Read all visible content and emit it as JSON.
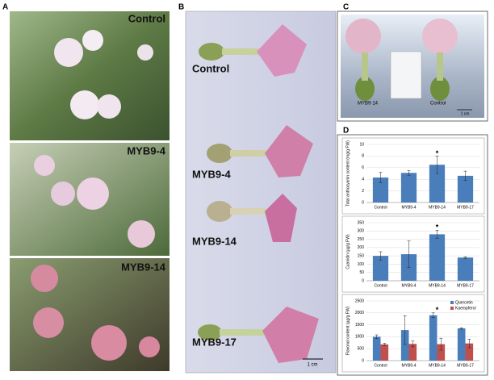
{
  "panels": {
    "a": {
      "label": "A",
      "photos": [
        "Control",
        "MYB9-4",
        "MYB9-14"
      ]
    },
    "b": {
      "label": "B",
      "labels": [
        "Control",
        "MYB9-4",
        "MYB9-14",
        "MYB9-17"
      ],
      "scale": "1 cm"
    },
    "c": {
      "label": "C",
      "labels": [
        "MYB9-14",
        "Control"
      ],
      "scale": "1 cm"
    },
    "d": {
      "label": "D"
    }
  },
  "chart_data": [
    {
      "type": "bar",
      "ylabel": "Total anthocyanin content (mg/g FW)",
      "categories": [
        "Control",
        "MYB9-4",
        "MYB9-14",
        "MYB9-17"
      ],
      "values": [
        4.3,
        5.1,
        6.5,
        4.6
      ],
      "errors": [
        0.9,
        0.4,
        1.5,
        0.8
      ],
      "color": "#4a7ebb",
      "markers": [
        null,
        null,
        "*",
        null
      ],
      "ylim": [
        0,
        10
      ],
      "yticks": [
        0,
        2,
        4,
        6,
        8,
        10
      ],
      "grid": true
    },
    {
      "type": "bar",
      "ylabel": "Cyanidin (µg/g FW)",
      "categories": [
        "Control",
        "MYB9-4",
        "MYB9-14",
        "MYB9-17"
      ],
      "values": [
        150,
        160,
        280,
        140
      ],
      "errors": [
        25,
        80,
        25,
        5
      ],
      "color": "#4a7ebb",
      "markers": [
        null,
        null,
        "*",
        null
      ],
      "ylim": [
        0,
        350
      ],
      "yticks": [
        0,
        50,
        100,
        150,
        200,
        250,
        300,
        350
      ],
      "grid": true
    },
    {
      "type": "bar",
      "ylabel": "Flavonol content (µg/g FW)",
      "categories": [
        "Control",
        "MYB9-4",
        "MYB9-14",
        "MYB9-17"
      ],
      "series": [
        {
          "name": "Quercetin",
          "color": "#4a7ebb",
          "values": [
            1000,
            1280,
            1900,
            1350
          ],
          "errors": [
            80,
            600,
            100,
            30
          ]
        },
        {
          "name": "Kaempferol",
          "color": "#c0504d",
          "values": [
            680,
            700,
            690,
            720
          ],
          "errors": [
            50,
            120,
            250,
            180
          ]
        }
      ],
      "markers": [
        null,
        null,
        "*",
        null
      ],
      "ylim": [
        0,
        2500
      ],
      "yticks": [
        0,
        500,
        1000,
        1500,
        2000,
        2500
      ],
      "grid": true,
      "legend": "top-right"
    }
  ]
}
